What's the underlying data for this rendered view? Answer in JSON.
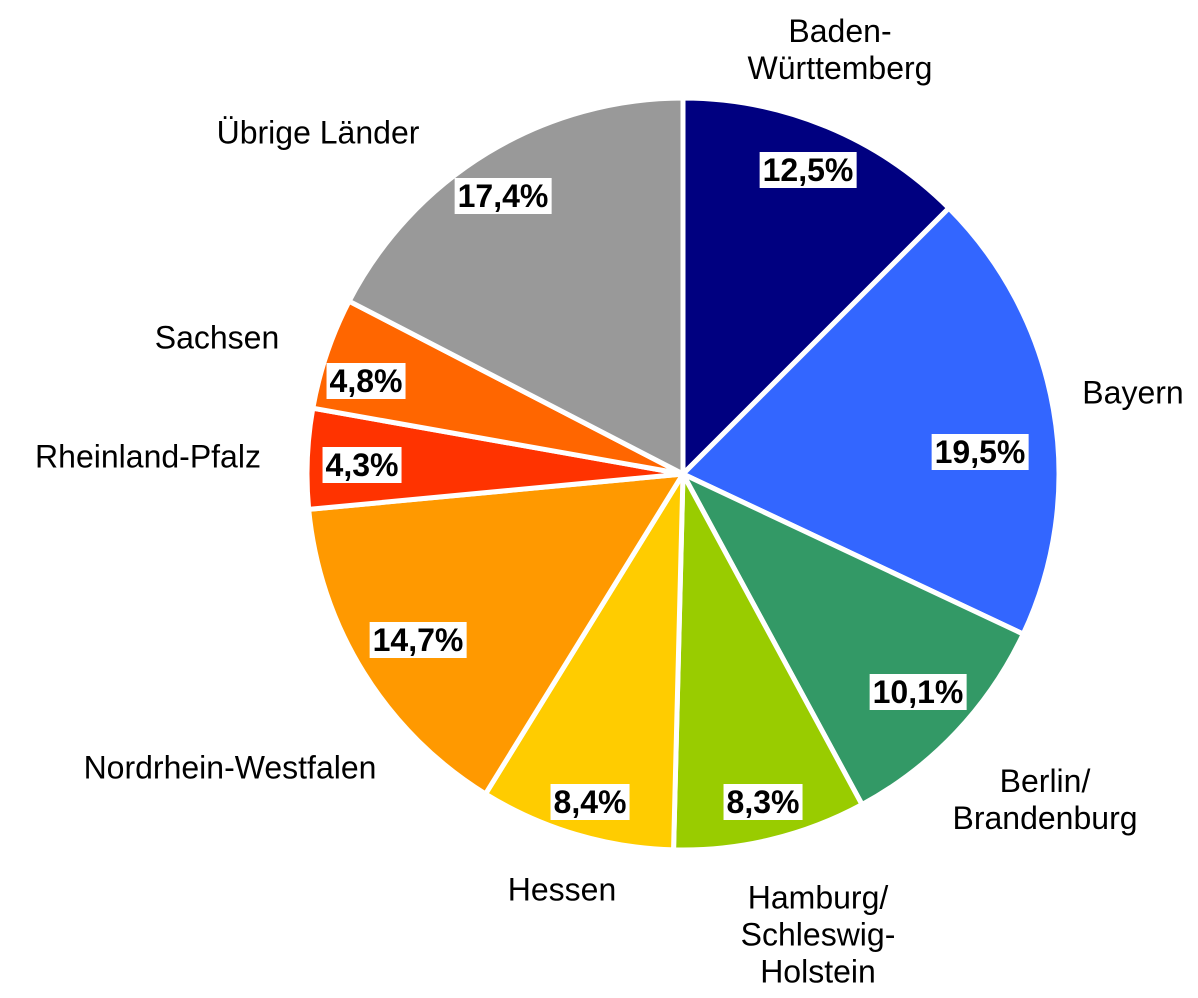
{
  "chart_data": {
    "type": "pie",
    "categories": [
      "Baden-\nWürttemberg",
      "Bayern",
      "Berlin/\nBrandenburg",
      "Hamburg/\nSchleswig-\nHolstein",
      "Hessen",
      "Nordrhein-Westfalen",
      "Rheinland-Pfalz",
      "Sachsen",
      "Übrige Länder"
    ],
    "values": [
      12.5,
      19.5,
      10.1,
      8.3,
      8.4,
      14.7,
      4.3,
      4.8,
      17.4
    ],
    "value_labels": [
      "12,5%",
      "19,5%",
      "10,1%",
      "8,3%",
      "8,4%",
      "14,7%",
      "4,3%",
      "4,8%",
      "17,4%"
    ],
    "colors": [
      "#000080",
      "#3366ff",
      "#339966",
      "#99cc00",
      "#ffcc00",
      "#ff9900",
      "#ff3300",
      "#ff6600",
      "#999999"
    ]
  }
}
